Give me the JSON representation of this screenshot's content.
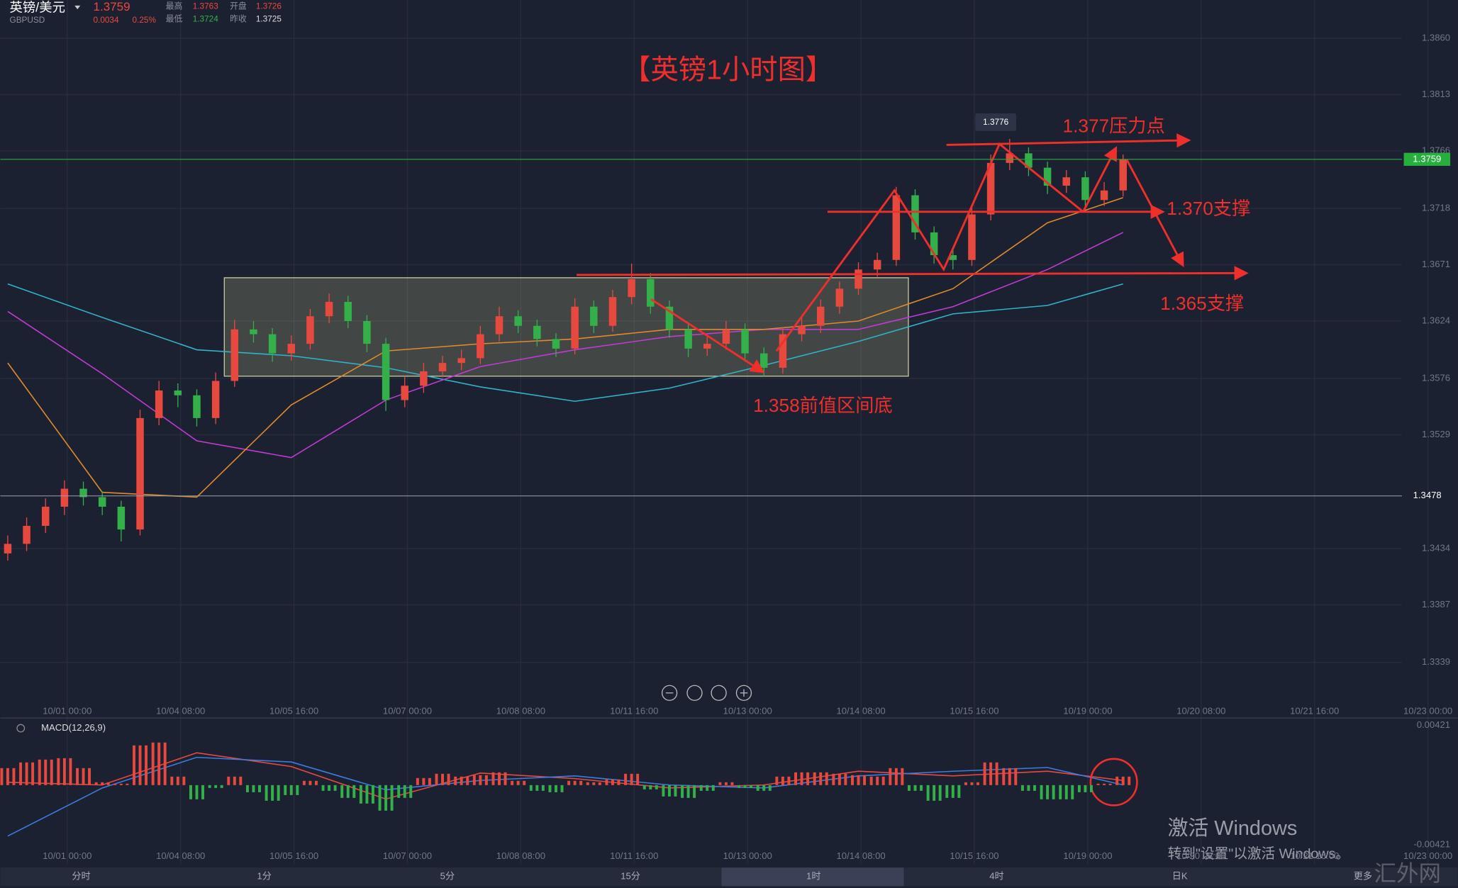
{
  "header": {
    "name": "英镑/美元",
    "code": "GBPUSD",
    "change": "0.0034",
    "change_pct": "0.25%",
    "high_label": "最高",
    "high": "1.3763",
    "low_label": "最低",
    "low": "1.3724",
    "open_label": "开盘",
    "open": "1.3726",
    "prev_label": "昨收",
    "prev": "1.3725"
  },
  "chart_data": {
    "type": "candlestick",
    "title": "【英镑1小时图】",
    "last_price": 1.3759,
    "alert_price": 1.3478,
    "peak_label": "1.3776",
    "annotations": [
      "1.377压力点",
      "1.370支撑",
      "1.365支撑",
      "1.358前值区间底"
    ],
    "colors": {
      "up": "#e8493f",
      "down": "#34b04a",
      "last": "#27ae3f"
    },
    "ylim": [
      1.3305,
      1.3892
    ],
    "yticks": [
      {
        "value": 1.386,
        "label": "1.3860"
      },
      1.3813,
      1.3766,
      1.3718,
      1.3671,
      1.3624,
      1.3576,
      1.3529,
      1.3434,
      1.3387,
      1.3339
    ],
    "grid": true,
    "x_labels": [
      "10/01 00:00",
      "10/04 08:00",
      "10/05 16:00",
      "10/07 00:00",
      "10/08 08:00",
      "10/11 16:00",
      "10/13 00:00",
      "10/14 08:00",
      "10/15 16:00",
      "10/19 00:00",
      "10/20 08:00",
      "10/21 16:00",
      "10/23 00:00"
    ],
    "ohlc": [
      [
        1.343,
        1.3445,
        1.3424,
        1.3438
      ],
      [
        1.3438,
        1.346,
        1.3432,
        1.3453
      ],
      [
        1.3453,
        1.3476,
        1.3447,
        1.3469
      ],
      [
        1.3469,
        1.3491,
        1.3462,
        1.3484
      ],
      [
        1.3484,
        1.349,
        1.347,
        1.3477
      ],
      [
        1.3477,
        1.3482,
        1.3462,
        1.3469
      ],
      [
        1.3469,
        1.3474,
        1.344,
        1.345
      ],
      [
        1.345,
        1.355,
        1.3445,
        1.3543
      ],
      [
        1.3543,
        1.3574,
        1.3537,
        1.3566
      ],
      [
        1.3566,
        1.3572,
        1.3552,
        1.3562
      ],
      [
        1.3562,
        1.3567,
        1.3536,
        1.3543
      ],
      [
        1.3543,
        1.3581,
        1.3538,
        1.3574
      ],
      [
        1.3574,
        1.3625,
        1.3569,
        1.3617
      ],
      [
        1.3617,
        1.3624,
        1.3606,
        1.3613
      ],
      [
        1.3613,
        1.3618,
        1.359,
        1.3597
      ],
      [
        1.3597,
        1.3612,
        1.3591,
        1.3605
      ],
      [
        1.3605,
        1.3634,
        1.36,
        1.3628
      ],
      [
        1.3628,
        1.3647,
        1.3622,
        1.364
      ],
      [
        1.364,
        1.3645,
        1.3618,
        1.3624
      ],
      [
        1.3624,
        1.3629,
        1.3598,
        1.3605
      ],
      [
        1.3605,
        1.361,
        1.3549,
        1.3558
      ],
      [
        1.3558,
        1.3578,
        1.3552,
        1.357
      ],
      [
        1.357,
        1.3589,
        1.3564,
        1.3582
      ],
      [
        1.3582,
        1.3595,
        1.3577,
        1.3589
      ],
      [
        1.3589,
        1.36,
        1.3583,
        1.3593
      ],
      [
        1.3593,
        1.362,
        1.3588,
        1.3613
      ],
      [
        1.3613,
        1.3636,
        1.3607,
        1.3628
      ],
      [
        1.3628,
        1.3633,
        1.3614,
        1.362
      ],
      [
        1.362,
        1.3625,
        1.3603,
        1.3609
      ],
      [
        1.3609,
        1.3614,
        1.3594,
        1.3601
      ],
      [
        1.3601,
        1.3643,
        1.3596,
        1.3636
      ],
      [
        1.3636,
        1.3641,
        1.3614,
        1.362
      ],
      [
        1.362,
        1.365,
        1.3615,
        1.3644
      ],
      [
        1.3644,
        1.3672,
        1.3638,
        1.3659
      ],
      [
        1.3659,
        1.3664,
        1.363,
        1.3636
      ],
      [
        1.3636,
        1.3641,
        1.361,
        1.3617
      ],
      [
        1.3617,
        1.3622,
        1.3594,
        1.3601
      ],
      [
        1.3601,
        1.3612,
        1.3595,
        1.3605
      ],
      [
        1.3605,
        1.3624,
        1.36,
        1.3617
      ],
      [
        1.3617,
        1.3622,
        1.359,
        1.3597
      ],
      [
        1.3597,
        1.3602,
        1.3578,
        1.3585
      ],
      [
        1.3585,
        1.3619,
        1.358,
        1.3613
      ],
      [
        1.3613,
        1.3627,
        1.3607,
        1.362
      ],
      [
        1.362,
        1.3642,
        1.3614,
        1.3636
      ],
      [
        1.3636,
        1.3657,
        1.363,
        1.3651
      ],
      [
        1.3651,
        1.3673,
        1.3646,
        1.3667
      ],
      [
        1.3667,
        1.3681,
        1.3661,
        1.3675
      ],
      [
        1.3675,
        1.3736,
        1.367,
        1.3729
      ],
      [
        1.3729,
        1.3734,
        1.3692,
        1.3698
      ],
      [
        1.3698,
        1.3703,
        1.3672,
        1.3679
      ],
      [
        1.3679,
        1.3685,
        1.3667,
        1.3675
      ],
      [
        1.3675,
        1.3719,
        1.367,
        1.3713
      ],
      [
        1.3713,
        1.3763,
        1.3708,
        1.3756
      ],
      [
        1.3756,
        1.3776,
        1.375,
        1.3764
      ],
      [
        1.3764,
        1.3769,
        1.3745,
        1.3752
      ],
      [
        1.3752,
        1.3757,
        1.373,
        1.3737
      ],
      [
        1.3737,
        1.375,
        1.3731,
        1.3744
      ],
      [
        1.3744,
        1.3749,
        1.3718,
        1.3725
      ],
      [
        1.3725,
        1.374,
        1.372,
        1.3733
      ],
      [
        1.3733,
        1.3763,
        1.3728,
        1.3759
      ]
    ],
    "moving_averages": [
      {
        "color": "#2fb3c9",
        "x": [
          0,
          5,
          10,
          15,
          20,
          25,
          30,
          35,
          40,
          45,
          50,
          55,
          59
        ],
        "values": [
          1.3655,
          1.3627,
          1.36,
          1.3595,
          1.3585,
          1.3569,
          1.3557,
          1.3568,
          1.3587,
          1.3607,
          1.363,
          1.3637,
          1.3655
        ]
      },
      {
        "color": "#c23bd4",
        "x": [
          0,
          5,
          10,
          15,
          20,
          25,
          30,
          35,
          40,
          45,
          50,
          55,
          59
        ],
        "values": [
          1.3632,
          1.358,
          1.3524,
          1.351,
          1.3558,
          1.3586,
          1.36,
          1.3611,
          1.3617,
          1.3617,
          1.3636,
          1.3667,
          1.3698
        ]
      },
      {
        "color": "#e08a2c",
        "x": [
          0,
          5,
          10,
          15,
          20,
          25,
          30,
          35,
          40,
          45,
          50,
          55,
          59
        ],
        "values": [
          1.3589,
          1.3481,
          1.3477,
          1.3554,
          1.3599,
          1.3605,
          1.3609,
          1.3617,
          1.3617,
          1.3624,
          1.3651,
          1.3706,
          1.3727
        ]
      }
    ],
    "macd": {
      "label": "MACD(12,26,9)",
      "ylim": [
        -0.00555,
        0.0046
      ],
      "yticks": [
        0.00421,
        -0.00421
      ],
      "histogram": [
        0.0012,
        0.0016,
        0.0018,
        0.0019,
        0.0012,
        0.0002,
        0.0001,
        0.0028,
        0.003,
        0.0006,
        -0.001,
        -0.0002,
        0.0006,
        -0.0005,
        -0.0011,
        -0.0007,
        0.0003,
        -0.0004,
        -0.0009,
        -0.0013,
        -0.0018,
        -0.0009,
        0.0005,
        0.0008,
        0.0006,
        0.0007,
        0.0009,
        0.0003,
        -0.0004,
        -0.0005,
        0.0003,
        0.0002,
        0.0004,
        0.0008,
        -0.0003,
        -0.0008,
        -0.0009,
        -0.0004,
        0.0002,
        -0.0002,
        -0.0004,
        0.0006,
        0.0009,
        0.0009,
        0.0008,
        0.0007,
        0.0006,
        0.0012,
        -0.0004,
        -0.0011,
        -0.0009,
        0.0002,
        0.0016,
        0.0012,
        -0.0004,
        -0.001,
        -0.001,
        -0.0005,
        0.0001,
        0.0006
      ],
      "lines": [
        {
          "color": "#e8493f",
          "x": [
            0,
            5,
            10,
            15,
            20,
            25,
            30,
            35,
            40,
            45,
            50,
            55,
            59
          ],
          "values": [
            0.0002,
            1e-05,
            0.00228,
            0.00131,
            -0.00098,
            0.00085,
            0.00046,
            -0.0002,
            1e-05,
            0.00098,
            0.00065,
            0.00098,
            0.00033
          ]
        },
        {
          "color": "#3b7ce0",
          "x": [
            0,
            5,
            10,
            15,
            20,
            25,
            30,
            35,
            40,
            45,
            50,
            55,
            59
          ],
          "values": [
            -0.00359,
            -0.0002,
            0.00196,
            0.00163,
            -0.00033,
            0.00033,
            0.00065,
            1e-05,
            -0.0002,
            0.00065,
            0.00098,
            0.00124,
            1e-05
          ]
        }
      ]
    }
  },
  "tabs": [
    "分时",
    "1分",
    "5分",
    "15分",
    "1时",
    "4时",
    "日K",
    "更多"
  ],
  "watermark": {
    "title": "激活 Windows",
    "hint": "转到\"设置\"以激活 Windows。",
    "site": "汇外网"
  }
}
